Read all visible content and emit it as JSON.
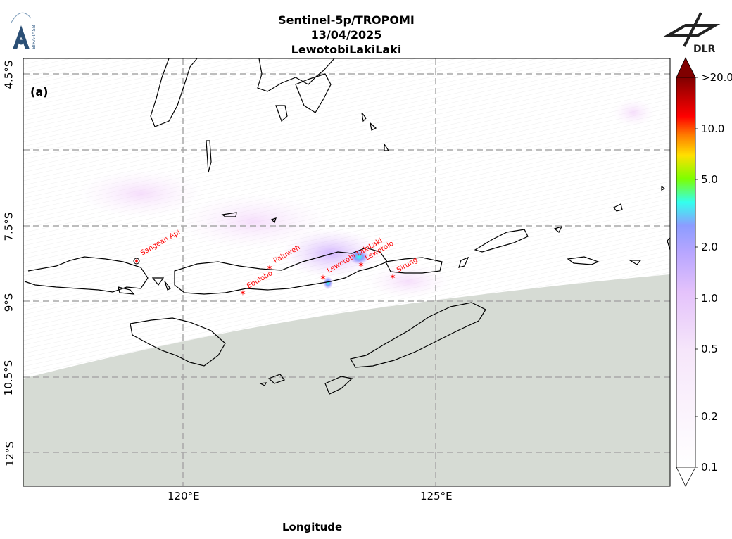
{
  "header": {
    "title_line1": "Sentinel-5p/TROPOMI",
    "title_line2": "13/04/2025",
    "title_line3": "LewotobiLakiLaki",
    "left_logo_text": "BIRA-IASB",
    "right_logo_text": "DLR"
  },
  "map": {
    "panel_label": "(a)",
    "x_axis_title": "Longitude",
    "x_ticks": [
      "120°E",
      "125°E"
    ],
    "y_ticks": [
      "4.5°S",
      "7.5°S",
      "9°S",
      "10.5°S",
      "12°S"
    ],
    "volcanoes": [
      "Sangean Api",
      "Paluweh",
      "Ebulobo",
      "Lewotobi LakiLaki",
      "Lewotolo",
      "Sirung"
    ],
    "colors": {
      "coast": "#000000",
      "no_data": "#d6dbd4",
      "volcano_marker": "#ff0000",
      "grid": "#b0b0b0"
    }
  },
  "colorbar": {
    "ticks": [
      ">20.0",
      "10.0",
      "5.0",
      "2.0",
      "1.0",
      "0.5",
      "0.2",
      "0.1"
    ],
    "color_stops": [
      "#ffffff",
      "#f3d6f7",
      "#dcb4ff",
      "#8c9cff",
      "#33ffee",
      "#7dff00",
      "#ffe000",
      "#ff8000",
      "#ff0000",
      "#c00000",
      "#800000"
    ]
  }
}
